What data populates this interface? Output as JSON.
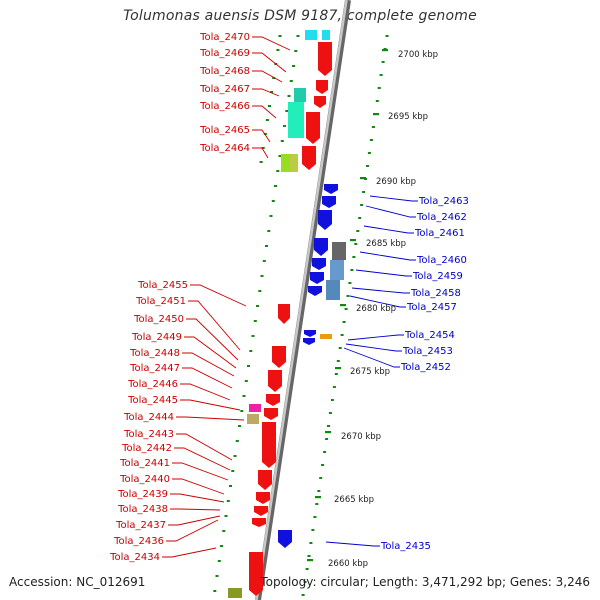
{
  "title": "Tolumonas auensis DSM 9187, complete genome",
  "footer": {
    "accession": "Accession: NC_012691",
    "topology": "Topology: circular; Length: 3,471,292 bp; Genes: 3,246"
  },
  "colors": {
    "left_label": "#cc0000",
    "right_label": "#0000cc",
    "forward_gene": "#ee1111",
    "reverse_gene": "#1111dd",
    "backbone": "#999999",
    "tick": "#118811"
  },
  "kbp_ticks": [
    {
      "label": "2700 kbp",
      "kbp": 2700
    },
    {
      "label": "2695 kbp",
      "kbp": 2695
    },
    {
      "label": "2690 kbp",
      "kbp": 2690
    },
    {
      "label": "2685 kbp",
      "kbp": 2685
    },
    {
      "label": "2680 kbp",
      "kbp": 2680
    },
    {
      "label": "2675 kbp",
      "kbp": 2675
    },
    {
      "label": "2670 kbp",
      "kbp": 2670
    },
    {
      "label": "2665 kbp",
      "kbp": 2665
    },
    {
      "label": "2660 kbp",
      "kbp": 2660
    }
  ],
  "left_labels": [
    "Tola_2470",
    "Tola_2469",
    "Tola_2468",
    "Tola_2467",
    "Tola_2466",
    "Tola_2465",
    "Tola_2464",
    "Tola_2455",
    "Tola_2451",
    "Tola_2450",
    "Tola_2449",
    "Tola_2448",
    "Tola_2447",
    "Tola_2446",
    "Tola_2445",
    "Tola_2444",
    "Tola_2443",
    "Tola_2442",
    "Tola_2441",
    "Tola_2440",
    "Tola_2439",
    "Tola_2438",
    "Tola_2437",
    "Tola_2436",
    "Tola_2434"
  ],
  "right_labels": [
    "Tola_2463",
    "Tola_2462",
    "Tola_2461",
    "Tola_2460",
    "Tola_2459",
    "Tola_2458",
    "Tola_2457",
    "Tola_2454",
    "Tola_2453",
    "Tola_2452",
    "Tola_2435"
  ]
}
